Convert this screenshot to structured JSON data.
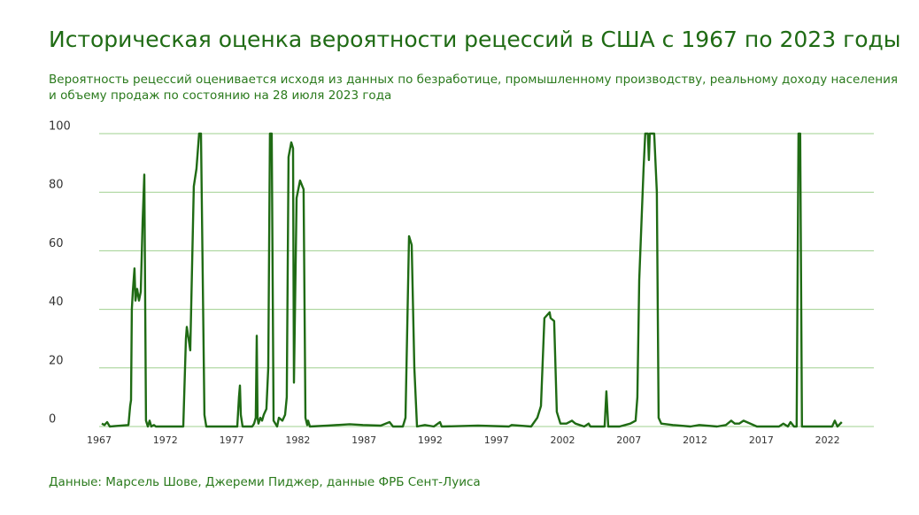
{
  "chart_data": {
    "type": "line",
    "title": "Историческая оценка вероятности рецессий в США с 1967 по 2023 годы",
    "subtitle": [
      "Вероятность рецессий оценивается исходя из данных по безработице, промышленному производству, реальному доходу населения",
      "и объему продаж по состоянию на 28 июля 2023 года"
    ],
    "source": "Данные: Марсель Шове, Джереми Пиджер, данные ФРБ Сент-Луиса",
    "color": "#1f6b14",
    "grid": true,
    "xlim": [
      1967,
      2025.5
    ],
    "ylim": [
      0,
      100
    ],
    "xticks": [
      1967,
      1972,
      1977,
      1982,
      1987,
      1992,
      1997,
      2002,
      2007,
      2012,
      2017,
      2022
    ],
    "yticks": [
      0,
      20,
      40,
      60,
      80,
      100
    ],
    "x": [
      1967.2,
      1967.4,
      1967.6,
      1967.8,
      1969.21,
      1969.34,
      1969.41,
      1969.47,
      1969.54,
      1969.67,
      1969.74,
      1969.87,
      1970.01,
      1970.14,
      1970.28,
      1970.41,
      1970.54,
      1970.68,
      1970.81,
      1970.94,
      1971.14,
      1971.28,
      1973.35,
      1973.55,
      1973.62,
      1973.75,
      1973.88,
      1974.15,
      1974.35,
      1974.55,
      1974.69,
      1974.95,
      1975.09,
      1977.43,
      1977.56,
      1977.63,
      1977.7,
      1977.83,
      1978.56,
      1978.7,
      1978.83,
      1978.9,
      1978.96,
      1979.03,
      1979.17,
      1979.3,
      1979.43,
      1979.63,
      1979.77,
      1979.9,
      1980.03,
      1980.17,
      1980.44,
      1980.57,
      1980.84,
      1981.04,
      1981.17,
      1981.3,
      1981.51,
      1981.64,
      1981.71,
      1981.91,
      1982.17,
      1982.44,
      1982.58,
      1982.71,
      1982.78,
      1982.91,
      1984.25,
      1985.92,
      1986.92,
      1988.26,
      1988.93,
      1989.19,
      1989.93,
      1990.13,
      1990.4,
      1990.6,
      1990.8,
      1991.0,
      1991.6,
      1992.27,
      1992.74,
      1992.87,
      1995.61,
      1997.95,
      1998.15,
      1999.62,
      2000.09,
      2000.36,
      2000.62,
      2001.02,
      2001.09,
      2001.36,
      2001.56,
      2001.83,
      2002.29,
      2002.7,
      2002.96,
      2003.63,
      2003.96,
      2004.1,
      2005.17,
      2005.3,
      2005.44,
      2006.3,
      2007.11,
      2007.51,
      2007.64,
      2007.78,
      2008.11,
      2008.24,
      2008.44,
      2008.51,
      2008.58,
      2008.71,
      2008.91,
      2009.11,
      2009.25,
      2009.45,
      2010.32,
      2011.65,
      2012.32,
      2013.66,
      2014.33,
      2014.73,
      2015.0,
      2015.33,
      2015.66,
      2016.67,
      2018.34,
      2018.67,
      2019.01,
      2019.21,
      2019.47,
      2019.67,
      2019.81,
      2019.94,
      2020.07,
      2022.35,
      2022.55,
      2022.75,
      2023.08
    ],
    "values": [
      1,
      0.5,
      1.5,
      0,
      0.5,
      7,
      9,
      40,
      46,
      54,
      43,
      47,
      43,
      46,
      70,
      86,
      2,
      0,
      2,
      0,
      0.5,
      0,
      0,
      30,
      34,
      30,
      26,
      82,
      88,
      100,
      100,
      4,
      0,
      0,
      10,
      14,
      4,
      0,
      0,
      1,
      3,
      31,
      3,
      1,
      3,
      2,
      4,
      6,
      20,
      100,
      100,
      2,
      0,
      3,
      2,
      4,
      10,
      92,
      97,
      95,
      15,
      78,
      84,
      81,
      3,
      0.5,
      2,
      0,
      0.3,
      0.8,
      0.5,
      0.3,
      1.5,
      0,
      0,
      3,
      65,
      62,
      20,
      0,
      0.5,
      0,
      1.5,
      0,
      0.3,
      0,
      0.5,
      0,
      3,
      7,
      37,
      39,
      37,
      36,
      5,
      1,
      1,
      2,
      1,
      0,
      1,
      0,
      0,
      12,
      0,
      0,
      1,
      2,
      10,
      50,
      88,
      100,
      100,
      91,
      100,
      100,
      100,
      80,
      3,
      1,
      0.5,
      0,
      0.5,
      0,
      0.5,
      2,
      1,
      1,
      2,
      0,
      0,
      1,
      0,
      1.5,
      0,
      0,
      100,
      100,
      0,
      0,
      2,
      0,
      1.5
    ]
  }
}
